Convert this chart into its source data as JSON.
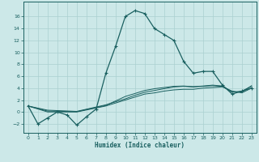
{
  "title": "",
  "xlabel": "Humidex (Indice chaleur)",
  "ylabel": "",
  "bg_color": "#cce8e8",
  "grid_color": "#aad0d0",
  "line_color": "#1a6060",
  "xlim": [
    -0.5,
    23.5
  ],
  "ylim": [
    -3.5,
    18.5
  ],
  "xticks": [
    0,
    1,
    2,
    3,
    4,
    5,
    6,
    7,
    8,
    9,
    10,
    11,
    12,
    13,
    14,
    15,
    16,
    17,
    18,
    19,
    20,
    21,
    22,
    23
  ],
  "yticks": [
    -2,
    0,
    2,
    4,
    6,
    8,
    10,
    12,
    14,
    16
  ],
  "main_x": [
    0,
    1,
    2,
    3,
    4,
    5,
    6,
    7,
    8,
    9,
    10,
    11,
    12,
    13,
    14,
    15,
    16,
    17,
    18,
    19,
    20,
    21,
    22,
    23
  ],
  "main_y": [
    1,
    -2,
    -1,
    0,
    -0.5,
    -2.2,
    -0.8,
    0.5,
    6.5,
    11,
    16,
    17,
    16.5,
    14,
    13,
    12,
    8.5,
    6.5,
    6.8,
    6.8,
    4.5,
    3,
    3.5,
    4
  ],
  "line2_x": [
    0,
    2,
    5,
    8,
    10,
    11,
    12,
    13,
    14,
    15,
    16,
    17,
    18,
    19,
    20,
    21,
    22,
    23
  ],
  "line2_y": [
    1,
    0,
    0,
    1,
    2,
    2.5,
    3,
    3.2,
    3.5,
    3.7,
    3.8,
    3.8,
    4.0,
    4.1,
    4.2,
    3.5,
    3.2,
    4.0
  ],
  "line3_x": [
    0,
    2,
    5,
    8,
    10,
    11,
    12,
    13,
    14,
    15,
    16,
    17,
    18,
    19,
    20,
    21,
    22,
    23
  ],
  "line3_y": [
    1,
    0.3,
    0.1,
    1.2,
    2.2,
    2.8,
    3.3,
    3.6,
    3.9,
    4.2,
    4.3,
    4.2,
    4.3,
    4.4,
    4.3,
    3.3,
    3.5,
    4.3
  ],
  "line4_x": [
    0,
    2,
    5,
    8,
    10,
    11,
    12,
    13,
    14,
    15,
    16,
    17,
    18,
    19,
    20,
    21,
    22,
    23
  ],
  "line4_y": [
    1,
    0.15,
    0.05,
    1.1,
    2.6,
    3.1,
    3.6,
    3.9,
    4.1,
    4.3,
    4.35,
    4.25,
    4.35,
    4.5,
    4.35,
    3.4,
    3.35,
    4.4
  ]
}
